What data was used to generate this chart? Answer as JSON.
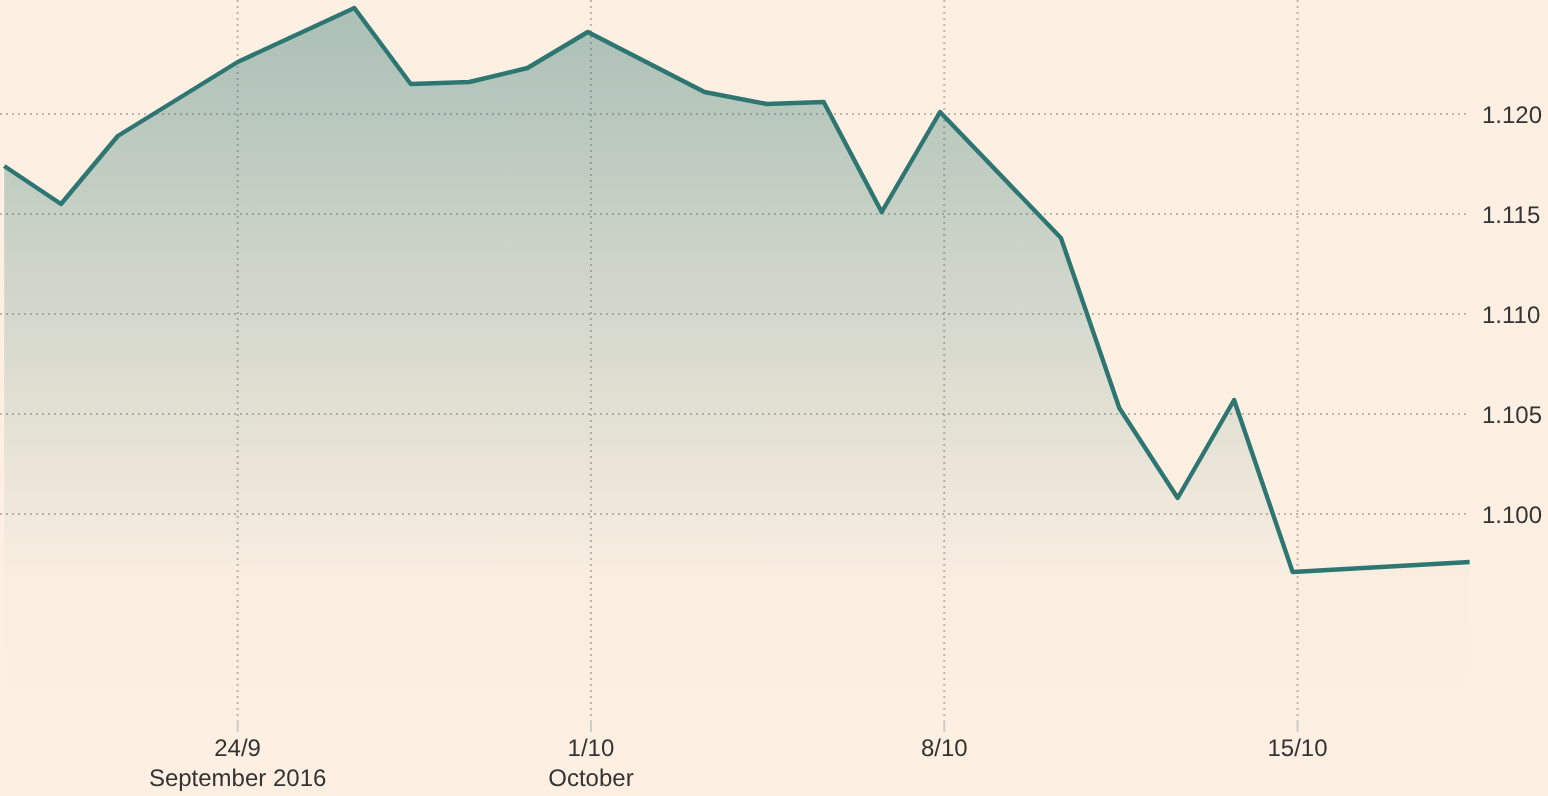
{
  "chart_data": {
    "type": "area",
    "x": [
      "2016-09-19T09:00",
      "2016-09-20T12:00",
      "2016-09-21T15:00",
      "2016-09-24T00:00",
      "2016-09-26T07:30",
      "2016-09-27T10:20",
      "2016-09-28T14:10",
      "2016-09-29T17:50",
      "2016-09-30T22:30",
      "2016-10-03T06:00",
      "2016-10-04T11:45",
      "2016-10-05T14:40",
      "2016-10-06T18:15",
      "2016-10-07T22:00",
      "2016-10-10T07:30",
      "2016-10-11T11:15",
      "2016-10-12T15:00",
      "2016-10-13T17:50",
      "2016-10-14T21:40",
      "2016-10-18T09:50"
    ],
    "series": [
      {
        "color": "#2e7672",
        "values": [
          1.1174,
          1.1155,
          1.1189,
          1.1226,
          1.1253,
          1.1215,
          1.1216,
          1.1223,
          1.1241,
          1.1211,
          1.1205,
          1.1206,
          1.1151,
          1.1201,
          1.1138,
          1.1053,
          1.1008,
          1.1057,
          1.0971,
          1.0976
        ]
      }
    ],
    "xlim": [
      "2016-09-19T07:00",
      "2016-10-18T10:00"
    ],
    "xticks": [
      {
        "value": "2016-09-24",
        "label": "24/9\nSeptember 2016"
      },
      {
        "value": "2016-10-01",
        "label": "1/10\nOctober"
      },
      {
        "value": "2016-10-08",
        "label": "8/10"
      },
      {
        "value": "2016-10-15",
        "label": "15/10"
      }
    ],
    "ylim": [
      1.0897,
      1.1257
    ],
    "yticks": [
      {
        "value": 1.1,
        "label": "1.100"
      },
      {
        "value": 1.105,
        "label": "1.105"
      },
      {
        "value": 1.11,
        "label": "1.110"
      },
      {
        "value": 1.115,
        "label": "1.115"
      },
      {
        "value": 1.12,
        "label": "1.120"
      }
    ],
    "grid": true,
    "line_style": "solid",
    "marker": "none"
  }
}
